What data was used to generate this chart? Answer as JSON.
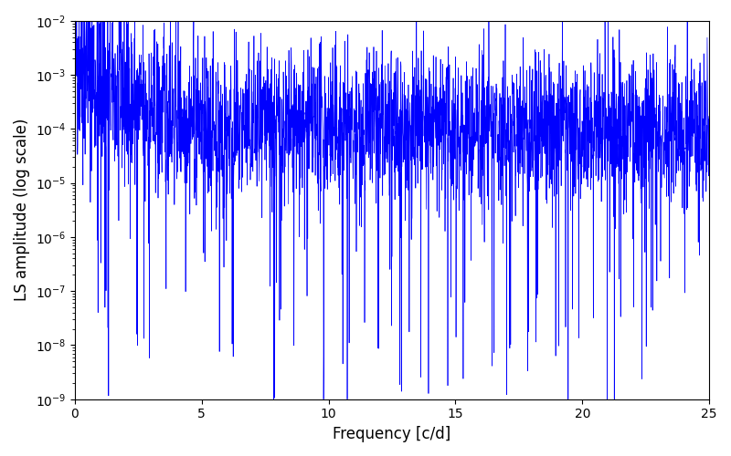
{
  "title": "",
  "xlabel": "Frequency [c/d]",
  "ylabel": "LS amplitude (log scale)",
  "xlim": [
    0,
    25
  ],
  "ylim": [
    1e-09,
    0.01
  ],
  "line_color": "#0000ff",
  "line_width": 0.5,
  "figsize": [
    8.0,
    5.0
  ],
  "dpi": 100,
  "seed": 42,
  "n_points": 3000,
  "freq_max": 25.0
}
